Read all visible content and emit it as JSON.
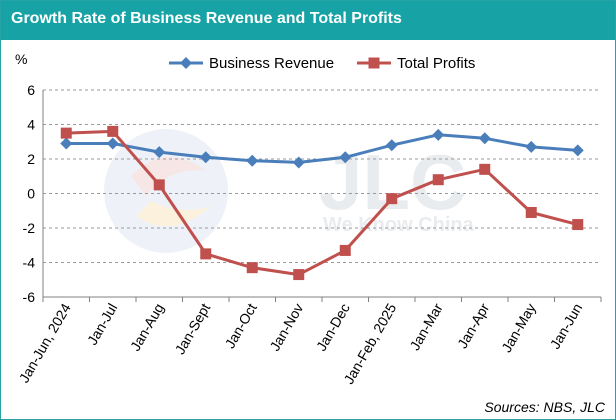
{
  "header": {
    "title": "Growth Rate of Business Revenue and Total Profits"
  },
  "watermark": {
    "logo": "JLC",
    "tagline": "We Know China"
  },
  "footer": {
    "source": "Sources: NBS, JLC"
  },
  "chart_data": {
    "type": "line",
    "title": "Growth Rate of Business Revenue and Total Profits",
    "ylabel": "%",
    "ylim": [
      -6,
      6
    ],
    "yticks": [
      -6,
      -4,
      -2,
      0,
      2,
      4,
      6
    ],
    "grid": "horizontal-dashed",
    "legend": "top-center",
    "categories": [
      "Jan-Jun, 2024",
      "Jan-Jul",
      "Jan-Aug",
      "Jan-Sept",
      "Jan-Oct",
      "Jan-Nov",
      "Jan-Dec",
      "Jan-Feb, 2025",
      "Jan-Mar",
      "Jan-Apr",
      "Jan-May",
      "Jan-Jun"
    ],
    "series": [
      {
        "name": "Business Revenue",
        "color": "#4a7ebb",
        "marker": "diamond",
        "values": [
          2.9,
          2.9,
          2.4,
          2.1,
          1.9,
          1.8,
          2.1,
          2.8,
          3.4,
          3.2,
          2.7,
          2.5
        ]
      },
      {
        "name": "Total Profits",
        "color": "#c0504d",
        "marker": "square",
        "values": [
          3.5,
          3.6,
          0.5,
          -3.5,
          -4.3,
          -4.7,
          -3.3,
          -0.3,
          0.8,
          1.4,
          -1.1,
          -1.8
        ]
      }
    ]
  }
}
